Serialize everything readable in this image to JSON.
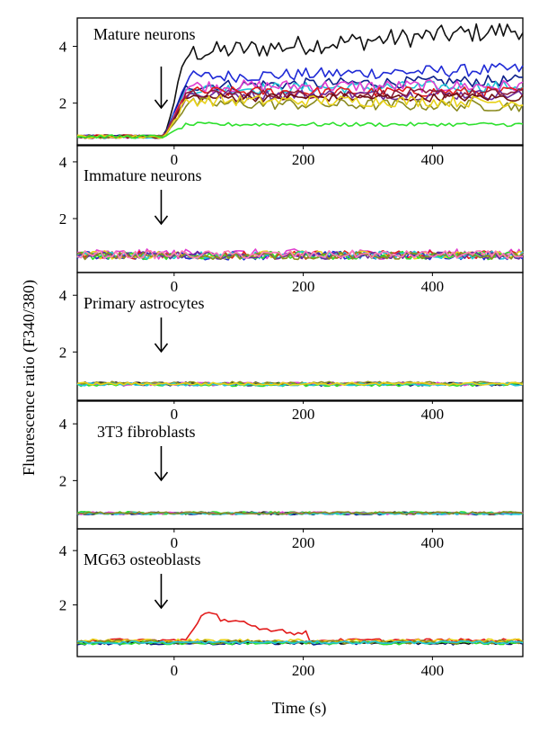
{
  "ylabel": "Fluorescence ratio (F340/380)",
  "xlabel": "Time (s)",
  "colors": {
    "black": "#111111",
    "blue": "#1f2ad6",
    "cyan": "#22c6d8",
    "magenta": "#e03fd0",
    "red": "#e21b1b",
    "yellow": "#e8d21a",
    "olive": "#8a8a1e",
    "green": "#2ee02e",
    "maroon": "#8b1a3a",
    "navy": "#0c1f8a",
    "purple": "#6a2a9a",
    "darkred": "#6e1010",
    "teal": "#1a8a8a",
    "pink": "#ff7ab8"
  },
  "chart_data": [
    {
      "type": "line",
      "title": "Mature neurons",
      "xlim": [
        -150,
        540
      ],
      "ylim": [
        0.5,
        5.0
      ],
      "xticks": [
        0,
        200,
        400
      ],
      "yticks": [
        2,
        4
      ],
      "stimulus_arrow_x": -20,
      "baseline": 0.82,
      "onset": -15,
      "series": [
        {
          "color_key": "black",
          "plateau": 3.7,
          "noise": 0.35,
          "trend": 0.9
        },
        {
          "color_key": "blue",
          "plateau": 2.9,
          "noise": 0.22,
          "trend": 0.3
        },
        {
          "color_key": "navy",
          "plateau": 2.6,
          "noise": 0.2,
          "trend": 0.2
        },
        {
          "color_key": "cyan",
          "plateau": 2.5,
          "noise": 0.2,
          "trend": 0.1
        },
        {
          "color_key": "magenta",
          "plateau": 2.6,
          "noise": 0.22,
          "trend": 0.0
        },
        {
          "color_key": "red",
          "plateau": 2.4,
          "noise": 0.18,
          "trend": 0.0
        },
        {
          "color_key": "purple",
          "plateau": 2.3,
          "noise": 0.18,
          "trend": 0.0
        },
        {
          "color_key": "maroon",
          "plateau": 2.3,
          "noise": 0.16,
          "trend": 0.05
        },
        {
          "color_key": "darkred",
          "plateau": 2.2,
          "noise": 0.15,
          "trend": 0.0
        },
        {
          "color_key": "olive",
          "plateau": 2.0,
          "noise": 0.2,
          "trend": -0.1
        },
        {
          "color_key": "yellow",
          "plateau": 2.1,
          "noise": 0.2,
          "trend": -0.05
        },
        {
          "color_key": "green",
          "plateau": 1.25,
          "noise": 0.07,
          "trend": 0.0
        }
      ]
    },
    {
      "type": "line",
      "title": "Immature neurons",
      "xlim": [
        -150,
        540
      ],
      "ylim": [
        0.1,
        4.6
      ],
      "xticks": [
        0,
        200,
        400
      ],
      "yticks": [
        2,
        4
      ],
      "stimulus_arrow_x": -20,
      "baseline": 0.72,
      "series": [
        {
          "color_key": "magenta",
          "plateau": 0.75,
          "noise": 0.18,
          "trend": 0.0
        },
        {
          "color_key": "red",
          "plateau": 0.72,
          "noise": 0.15,
          "trend": 0.0
        },
        {
          "color_key": "blue",
          "plateau": 0.7,
          "noise": 0.15,
          "trend": 0.0
        },
        {
          "color_key": "yellow",
          "plateau": 0.72,
          "noise": 0.15,
          "trend": 0.0
        },
        {
          "color_key": "green",
          "plateau": 0.7,
          "noise": 0.14,
          "trend": 0.0
        },
        {
          "color_key": "cyan",
          "plateau": 0.71,
          "noise": 0.14,
          "trend": 0.0
        },
        {
          "color_key": "purple",
          "plateau": 0.7,
          "noise": 0.13,
          "trend": 0.0
        },
        {
          "color_key": "olive",
          "plateau": 0.69,
          "noise": 0.13,
          "trend": 0.0
        },
        {
          "color_key": "pink",
          "plateau": 0.73,
          "noise": 0.14,
          "trend": 0.0
        }
      ]
    },
    {
      "type": "line",
      "title": "Primary astrocytes",
      "xlim": [
        -150,
        540
      ],
      "ylim": [
        0.3,
        4.8
      ],
      "xticks": [
        0,
        200,
        400
      ],
      "yticks": [
        2,
        4
      ],
      "stimulus_arrow_x": -20,
      "series": [
        {
          "color_key": "black",
          "plateau": 0.88,
          "noise": 0.06,
          "trend": 0.0
        },
        {
          "color_key": "navy",
          "plateau": 0.86,
          "noise": 0.06,
          "trend": 0.0
        },
        {
          "color_key": "magenta",
          "plateau": 0.87,
          "noise": 0.06,
          "trend": 0.0
        },
        {
          "color_key": "green",
          "plateau": 0.85,
          "noise": 0.06,
          "trend": 0.0
        },
        {
          "color_key": "olive",
          "plateau": 0.9,
          "noise": 0.06,
          "trend": 0.0
        },
        {
          "color_key": "cyan",
          "plateau": 0.86,
          "noise": 0.05,
          "trend": 0.0
        },
        {
          "color_key": "yellow",
          "plateau": 0.88,
          "noise": 0.05,
          "trend": 0.0
        }
      ]
    },
    {
      "type": "line",
      "title": "3T3 fibroblasts",
      "xlim": [
        -150,
        540
      ],
      "ylim": [
        0.3,
        4.8
      ],
      "xticks": [
        0,
        200,
        400
      ],
      "yticks": [
        2,
        4
      ],
      "stimulus_arrow_x": -20,
      "series": [
        {
          "color_key": "black",
          "plateau": 0.85,
          "noise": 0.05,
          "trend": 0.0
        },
        {
          "color_key": "navy",
          "plateau": 0.84,
          "noise": 0.05,
          "trend": 0.0
        },
        {
          "color_key": "green",
          "plateau": 0.86,
          "noise": 0.05,
          "trend": 0.0
        },
        {
          "color_key": "magenta",
          "plateau": 0.85,
          "noise": 0.05,
          "trend": 0.0
        },
        {
          "color_key": "cyan",
          "plateau": 0.84,
          "noise": 0.04,
          "trend": 0.0
        },
        {
          "color_key": "olive",
          "plateau": 0.86,
          "noise": 0.04,
          "trend": 0.0
        }
      ]
    },
    {
      "type": "line",
      "title": "MG63 osteoblasts",
      "xlim": [
        -150,
        540
      ],
      "ylim": [
        0.1,
        4.8
      ],
      "xticks": [
        0,
        200,
        400
      ],
      "yticks": [
        2,
        4
      ],
      "stimulus_arrow_x": -20,
      "series": [
        {
          "color_key": "red",
          "plateau": 0.7,
          "noise": 0.06,
          "trend": 0.0,
          "peak": {
            "t": 45,
            "height": 1.75,
            "until": 205
          }
        },
        {
          "color_key": "navy",
          "plateau": 0.6,
          "noise": 0.07,
          "trend": 0.0
        },
        {
          "color_key": "black",
          "plateau": 0.62,
          "noise": 0.06,
          "trend": 0.0
        },
        {
          "color_key": "yellow",
          "plateau": 0.68,
          "noise": 0.07,
          "trend": 0.0
        },
        {
          "color_key": "green",
          "plateau": 0.6,
          "noise": 0.06,
          "trend": 0.0
        },
        {
          "color_key": "olive",
          "plateau": 0.64,
          "noise": 0.07,
          "trend": 0.0
        },
        {
          "color_key": "cyan",
          "plateau": 0.62,
          "noise": 0.05,
          "trend": 0.0
        }
      ]
    }
  ]
}
